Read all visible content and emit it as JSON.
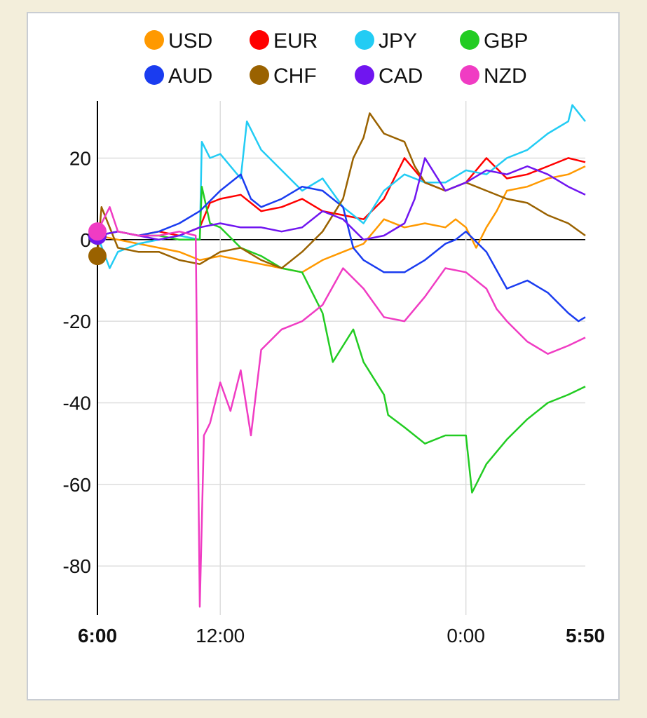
{
  "chart_data": {
    "type": "line",
    "x_ticks": [
      {
        "label": "6:00",
        "hour": 0,
        "bold": true
      },
      {
        "label": "12:00",
        "hour": 6,
        "bold": false
      },
      {
        "label": "0:00",
        "hour": 18,
        "bold": false
      },
      {
        "label": "5:50",
        "hour": 23.8333,
        "bold": true
      }
    ],
    "xlim": [
      0,
      23.8333
    ],
    "ylim": [
      -92,
      34
    ],
    "y_ticks": [
      20,
      0,
      -20,
      -40,
      -60,
      -80
    ],
    "grid": true,
    "legend_position": "top",
    "series": [
      {
        "name": "USD",
        "color": "#ff9900",
        "points": [
          [
            0,
            1
          ],
          [
            1,
            0
          ],
          [
            2,
            -1
          ],
          [
            3,
            -2
          ],
          [
            4,
            -3
          ],
          [
            5,
            -5
          ],
          [
            6,
            -4
          ],
          [
            7,
            -5
          ],
          [
            8,
            -6
          ],
          [
            9,
            -7
          ],
          [
            10,
            -8
          ],
          [
            11,
            -5
          ],
          [
            12,
            -3
          ],
          [
            13,
            -1
          ],
          [
            13.5,
            2
          ],
          [
            14,
            5
          ],
          [
            15,
            3
          ],
          [
            16,
            4
          ],
          [
            17,
            3
          ],
          [
            17.5,
            5
          ],
          [
            18,
            3
          ],
          [
            18.5,
            -2
          ],
          [
            19,
            3
          ],
          [
            19.5,
            7
          ],
          [
            20,
            12
          ],
          [
            21,
            13
          ],
          [
            22,
            15
          ],
          [
            23,
            16
          ],
          [
            23.8333,
            18
          ]
        ]
      },
      {
        "name": "EUR",
        "color": "#ff0000",
        "points": [
          [
            0,
            1
          ],
          [
            1,
            2
          ],
          [
            2,
            1
          ],
          [
            3,
            2
          ],
          [
            4,
            1
          ],
          [
            5,
            3
          ],
          [
            5.5,
            9
          ],
          [
            6,
            10
          ],
          [
            7,
            11
          ],
          [
            8,
            7
          ],
          [
            9,
            8
          ],
          [
            10,
            10
          ],
          [
            11,
            7
          ],
          [
            12,
            6
          ],
          [
            13,
            5
          ],
          [
            14,
            10
          ],
          [
            15,
            20
          ],
          [
            16,
            14
          ],
          [
            17,
            12
          ],
          [
            18,
            14
          ],
          [
            19,
            20
          ],
          [
            20,
            15
          ],
          [
            21,
            16
          ],
          [
            22,
            18
          ],
          [
            23,
            20
          ],
          [
            23.8333,
            19
          ]
        ]
      },
      {
        "name": "JPY",
        "color": "#22ccf4",
        "points": [
          [
            0,
            1
          ],
          [
            0.6,
            -7
          ],
          [
            1,
            -3
          ],
          [
            2,
            -1
          ],
          [
            3,
            0
          ],
          [
            4,
            1
          ],
          [
            5,
            0
          ],
          [
            5.1,
            24
          ],
          [
            5.5,
            20
          ],
          [
            6,
            21
          ],
          [
            7,
            15
          ],
          [
            7.3,
            29
          ],
          [
            8,
            22
          ],
          [
            9,
            17
          ],
          [
            10,
            12
          ],
          [
            11,
            15
          ],
          [
            12,
            8
          ],
          [
            13,
            4
          ],
          [
            14,
            12
          ],
          [
            15,
            16
          ],
          [
            16,
            14
          ],
          [
            17,
            14
          ],
          [
            18,
            17
          ],
          [
            19,
            16
          ],
          [
            20,
            20
          ],
          [
            21,
            22
          ],
          [
            22,
            26
          ],
          [
            23,
            29
          ],
          [
            23.2,
            33
          ],
          [
            23.8333,
            29
          ]
        ]
      },
      {
        "name": "GBP",
        "color": "#22cc22",
        "points": [
          [
            0,
            1
          ],
          [
            1,
            2
          ],
          [
            2,
            1
          ],
          [
            3,
            1
          ],
          [
            4,
            0
          ],
          [
            5,
            0
          ],
          [
            5.1,
            13
          ],
          [
            5.5,
            4
          ],
          [
            6,
            3
          ],
          [
            7,
            -2
          ],
          [
            8,
            -4
          ],
          [
            9,
            -7
          ],
          [
            10,
            -8
          ],
          [
            11,
            -18
          ],
          [
            11.5,
            -30
          ],
          [
            12,
            -26
          ],
          [
            12.5,
            -22
          ],
          [
            13,
            -30
          ],
          [
            14,
            -38
          ],
          [
            14.2,
            -43
          ],
          [
            15,
            -46
          ],
          [
            16,
            -50
          ],
          [
            17,
            -48
          ],
          [
            18,
            -48
          ],
          [
            18.3,
            -62
          ],
          [
            19,
            -55
          ],
          [
            20,
            -49
          ],
          [
            21,
            -44
          ],
          [
            22,
            -40
          ],
          [
            23,
            -38
          ],
          [
            23.8333,
            -36
          ]
        ]
      },
      {
        "name": "AUD",
        "color": "#1a3cf0",
        "points": [
          [
            0,
            1
          ],
          [
            1,
            2
          ],
          [
            2,
            1
          ],
          [
            3,
            2
          ],
          [
            4,
            4
          ],
          [
            5,
            7
          ],
          [
            6,
            12
          ],
          [
            7,
            16
          ],
          [
            7.5,
            10
          ],
          [
            8,
            8
          ],
          [
            9,
            10
          ],
          [
            10,
            13
          ],
          [
            11,
            12
          ],
          [
            12,
            8
          ],
          [
            12.5,
            -2
          ],
          [
            13,
            -5
          ],
          [
            14,
            -8
          ],
          [
            15,
            -8
          ],
          [
            16,
            -5
          ],
          [
            17,
            -1
          ],
          [
            17.5,
            0
          ],
          [
            18,
            2
          ],
          [
            19,
            -3
          ],
          [
            20,
            -12
          ],
          [
            21,
            -10
          ],
          [
            22,
            -13
          ],
          [
            23,
            -18
          ],
          [
            23.5,
            -20
          ],
          [
            23.8333,
            -19
          ]
        ]
      },
      {
        "name": "CHF",
        "color": "#9a6200",
        "points": [
          [
            0,
            -4
          ],
          [
            0.2,
            8
          ],
          [
            1,
            -2
          ],
          [
            2,
            -3
          ],
          [
            3,
            -3
          ],
          [
            4,
            -5
          ],
          [
            5,
            -6
          ],
          [
            6,
            -3
          ],
          [
            7,
            -2
          ],
          [
            8,
            -5
          ],
          [
            9,
            -7
          ],
          [
            10,
            -3
          ],
          [
            11,
            2
          ],
          [
            12,
            10
          ],
          [
            12.5,
            20
          ],
          [
            13,
            25
          ],
          [
            13.3,
            31
          ],
          [
            14,
            26
          ],
          [
            15,
            24
          ],
          [
            15.5,
            18
          ],
          [
            16,
            14
          ],
          [
            17,
            12
          ],
          [
            18,
            14
          ],
          [
            19,
            12
          ],
          [
            20,
            10
          ],
          [
            21,
            9
          ],
          [
            22,
            6
          ],
          [
            23,
            4
          ],
          [
            23.8333,
            1
          ]
        ]
      },
      {
        "name": "CAD",
        "color": "#7015f0",
        "points": [
          [
            0,
            1
          ],
          [
            1,
            2
          ],
          [
            2,
            1
          ],
          [
            3,
            0
          ],
          [
            4,
            1
          ],
          [
            5,
            3
          ],
          [
            6,
            4
          ],
          [
            7,
            3
          ],
          [
            8,
            3
          ],
          [
            9,
            2
          ],
          [
            10,
            3
          ],
          [
            11,
            7
          ],
          [
            12,
            5
          ],
          [
            13,
            0
          ],
          [
            14,
            1
          ],
          [
            15,
            4
          ],
          [
            15.5,
            10
          ],
          [
            16,
            20
          ],
          [
            17,
            12
          ],
          [
            18,
            14
          ],
          [
            19,
            17
          ],
          [
            20,
            16
          ],
          [
            21,
            18
          ],
          [
            22,
            16
          ],
          [
            23,
            13
          ],
          [
            23.8333,
            11
          ]
        ]
      },
      {
        "name": "NZD",
        "color": "#f03cc3",
        "points": [
          [
            0,
            2
          ],
          [
            0.6,
            8
          ],
          [
            1,
            2
          ],
          [
            2,
            1
          ],
          [
            3,
            1
          ],
          [
            4,
            2
          ],
          [
            4.8,
            1
          ],
          [
            5,
            -90
          ],
          [
            5.2,
            -48
          ],
          [
            5.5,
            -45
          ],
          [
            6,
            -35
          ],
          [
            6.5,
            -42
          ],
          [
            7,
            -32
          ],
          [
            7.5,
            -48
          ],
          [
            8,
            -27
          ],
          [
            9,
            -22
          ],
          [
            10,
            -20
          ],
          [
            11,
            -16
          ],
          [
            12,
            -7
          ],
          [
            13,
            -12
          ],
          [
            14,
            -19
          ],
          [
            15,
            -20
          ],
          [
            16,
            -14
          ],
          [
            17,
            -7
          ],
          [
            18,
            -8
          ],
          [
            19,
            -12
          ],
          [
            19.5,
            -17
          ],
          [
            20,
            -20
          ],
          [
            21,
            -25
          ],
          [
            22,
            -28
          ],
          [
            23,
            -26
          ],
          [
            23.8333,
            -24
          ]
        ]
      }
    ]
  }
}
